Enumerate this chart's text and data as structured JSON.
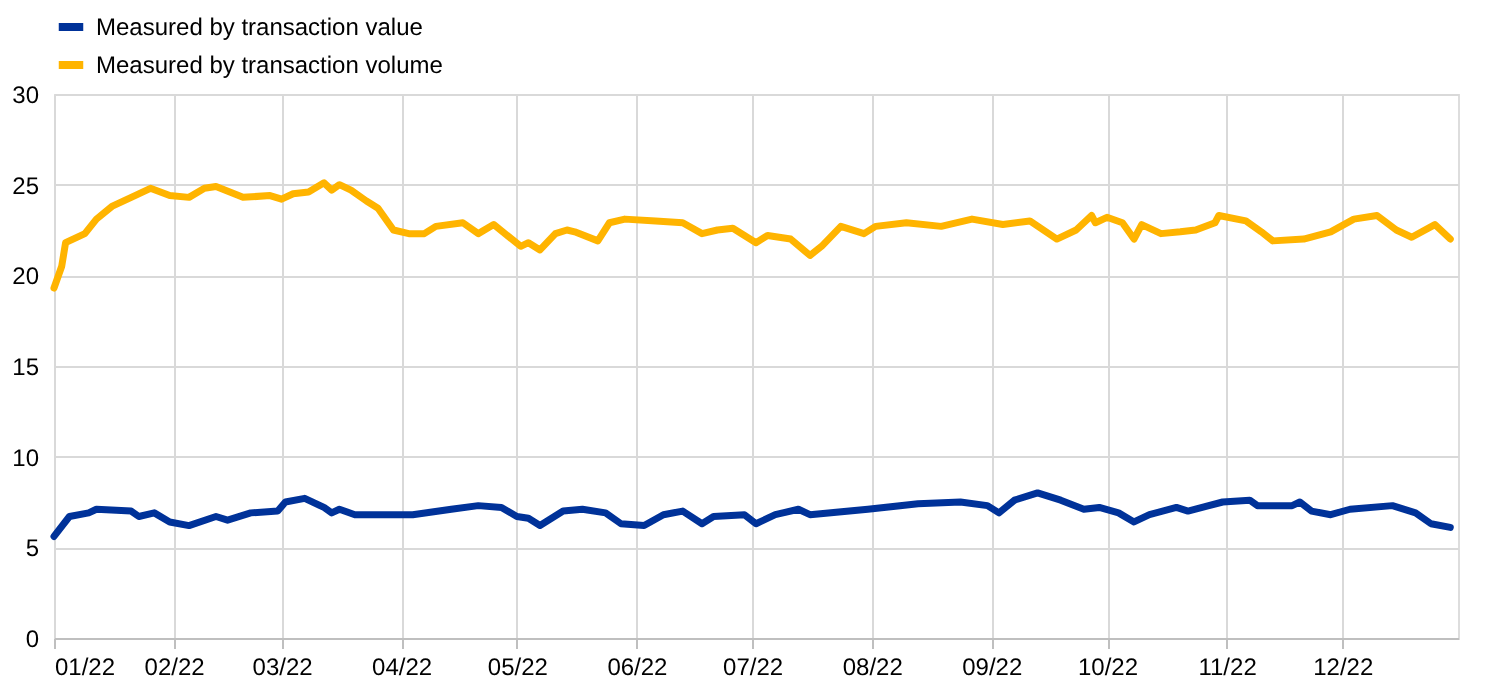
{
  "chart_data": {
    "type": "line",
    "xlim": [
      "2022-01-01",
      "2022-12-31"
    ],
    "xticks": [
      {
        "value": "2022-01-01",
        "label": "01/22"
      },
      {
        "value": "2022-02-01",
        "label": "02/22"
      },
      {
        "value": "2022-03-01",
        "label": "03/22"
      },
      {
        "value": "2022-04-01",
        "label": "04/22"
      },
      {
        "value": "2022-05-01",
        "label": "05/22"
      },
      {
        "value": "2022-06-01",
        "label": "06/22"
      },
      {
        "value": "2022-07-01",
        "label": "07/22"
      },
      {
        "value": "2022-08-01",
        "label": "08/22"
      },
      {
        "value": "2022-09-01",
        "label": "09/22"
      },
      {
        "value": "2022-10-01",
        "label": "10/22"
      },
      {
        "value": "2022-11-01",
        "label": "11/22"
      },
      {
        "value": "2022-12-01",
        "label": "12/22"
      }
    ],
    "ylim": [
      0,
      30
    ],
    "yticks": [
      0,
      5,
      10,
      15,
      20,
      25,
      30
    ],
    "grid": true,
    "legend": "top left",
    "marker": "none",
    "line_style": "solid",
    "series": [
      {
        "name": "Measured by transaction value",
        "color": "#003299",
        "x": [
          "2022-01-01",
          "2022-01-05",
          "2022-01-10",
          "2022-01-12",
          "2022-01-21",
          "2022-01-23",
          "2022-01-27",
          "2022-01-31",
          "2022-02-05",
          "2022-02-12",
          "2022-02-15",
          "2022-02-21",
          "2022-02-28",
          "2022-03-02",
          "2022-03-07",
          "2022-03-12",
          "2022-03-14",
          "2022-03-16",
          "2022-03-20",
          "2022-03-31",
          "2022-04-04",
          "2022-04-14",
          "2022-04-21",
          "2022-04-27",
          "2022-05-01",
          "2022-05-04",
          "2022-05-07",
          "2022-05-13",
          "2022-05-18",
          "2022-05-24",
          "2022-05-28",
          "2022-06-03",
          "2022-06-08",
          "2022-06-13",
          "2022-06-18",
          "2022-06-21",
          "2022-06-29",
          "2022-07-02",
          "2022-07-07",
          "2022-07-13",
          "2022-07-16",
          "2022-07-31",
          "2022-08-13",
          "2022-08-24",
          "2022-08-31",
          "2022-09-03",
          "2022-09-07",
          "2022-09-13",
          "2022-09-19",
          "2022-09-25",
          "2022-09-29",
          "2022-10-04",
          "2022-10-08",
          "2022-10-12",
          "2022-10-19",
          "2022-10-22",
          "2022-10-31",
          "2022-11-07",
          "2022-11-09",
          "2022-11-18",
          "2022-11-20",
          "2022-11-23",
          "2022-11-28",
          "2022-12-03",
          "2022-12-14",
          "2022-12-20",
          "2022-12-24",
          "2022-12-29"
        ],
        "values": [
          5.6,
          6.7,
          6.9,
          7.1,
          7.0,
          6.7,
          6.9,
          6.4,
          6.2,
          6.7,
          6.5,
          6.9,
          7.0,
          7.5,
          7.7,
          7.2,
          6.9,
          7.1,
          6.8,
          6.8,
          6.8,
          7.1,
          7.3,
          7.2,
          6.7,
          6.6,
          6.2,
          7.0,
          7.1,
          6.9,
          6.3,
          6.2,
          6.8,
          7.0,
          6.3,
          6.7,
          6.8,
          6.3,
          6.8,
          7.1,
          6.8,
          7.1,
          7.4,
          7.5,
          7.3,
          6.9,
          7.6,
          8.0,
          7.6,
          7.1,
          7.2,
          6.9,
          6.4,
          6.8,
          7.2,
          7.0,
          7.5,
          7.6,
          7.3,
          7.3,
          7.5,
          7.0,
          6.8,
          7.1,
          7.3,
          6.9,
          6.3,
          6.1
        ]
      },
      {
        "name": "Measured by transaction volume",
        "color": "#ffb400",
        "x": [
          "2022-01-01",
          "2022-01-03",
          "2022-01-04",
          "2022-01-09",
          "2022-01-12",
          "2022-01-16",
          "2022-01-22",
          "2022-01-26",
          "2022-01-31",
          "2022-02-05",
          "2022-02-09",
          "2022-02-12",
          "2022-02-19",
          "2022-02-26",
          "2022-03-01",
          "2022-03-04",
          "2022-03-08",
          "2022-03-12",
          "2022-03-14",
          "2022-03-16",
          "2022-03-19",
          "2022-03-23",
          "2022-03-26",
          "2022-03-30",
          "2022-04-03",
          "2022-04-07",
          "2022-04-10",
          "2022-04-17",
          "2022-04-21",
          "2022-04-25",
          "2022-05-02",
          "2022-05-04",
          "2022-05-07",
          "2022-05-11",
          "2022-05-14",
          "2022-05-16",
          "2022-05-22",
          "2022-05-25",
          "2022-05-29",
          "2022-06-06",
          "2022-06-13",
          "2022-06-18",
          "2022-06-22",
          "2022-06-26",
          "2022-07-02",
          "2022-07-05",
          "2022-07-11",
          "2022-07-16",
          "2022-07-19",
          "2022-07-24",
          "2022-07-30",
          "2022-08-02",
          "2022-08-10",
          "2022-08-19",
          "2022-08-27",
          "2022-09-04",
          "2022-09-11",
          "2022-09-18",
          "2022-09-23",
          "2022-09-27",
          "2022-09-28",
          "2022-10-01",
          "2022-10-05",
          "2022-10-08",
          "2022-10-10",
          "2022-10-15",
          "2022-10-20",
          "2022-10-24",
          "2022-10-29",
          "2022-10-30",
          "2022-11-06",
          "2022-11-10",
          "2022-11-13",
          "2022-11-21",
          "2022-11-28",
          "2022-12-04",
          "2022-12-10",
          "2022-12-15",
          "2022-12-19",
          "2022-12-25",
          "2022-12-29"
        ],
        "values": [
          19.3,
          20.5,
          21.8,
          22.3,
          23.1,
          23.8,
          24.4,
          24.8,
          24.4,
          24.3,
          24.8,
          24.9,
          24.3,
          24.4,
          24.2,
          24.5,
          24.6,
          25.1,
          24.7,
          25.0,
          24.7,
          24.1,
          23.7,
          22.5,
          22.3,
          22.3,
          22.7,
          22.9,
          22.3,
          22.8,
          21.6,
          21.8,
          21.4,
          22.3,
          22.5,
          22.4,
          21.9,
          22.9,
          23.1,
          23.0,
          22.9,
          22.3,
          22.5,
          22.6,
          21.8,
          22.2,
          22.0,
          21.1,
          21.6,
          22.7,
          22.3,
          22.7,
          22.9,
          22.7,
          23.1,
          22.8,
          23.0,
          22.0,
          22.5,
          23.3,
          22.9,
          23.2,
          22.9,
          22.0,
          22.8,
          22.3,
          22.4,
          22.5,
          22.9,
          23.3,
          23.0,
          22.4,
          21.9,
          22.0,
          22.4,
          23.1,
          23.3,
          22.5,
          22.1,
          22.8,
          22.0
        ]
      }
    ]
  }
}
